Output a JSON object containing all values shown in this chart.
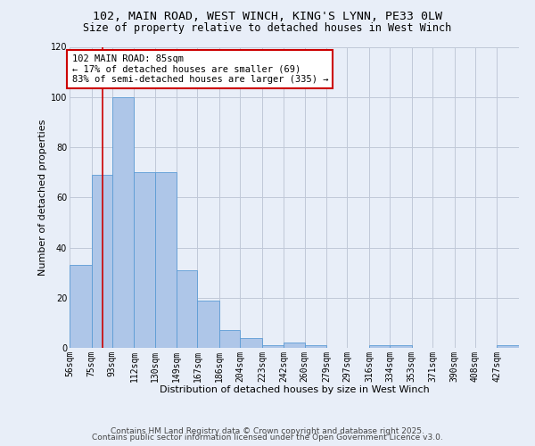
{
  "title_line1": "102, MAIN ROAD, WEST WINCH, KING'S LYNN, PE33 0LW",
  "title_line2": "Size of property relative to detached houses in West Winch",
  "xlabel": "Distribution of detached houses by size in West Winch",
  "ylabel": "Number of detached properties",
  "bin_labels": [
    "56sqm",
    "75sqm",
    "93sqm",
    "112sqm",
    "130sqm",
    "149sqm",
    "167sqm",
    "186sqm",
    "204sqm",
    "223sqm",
    "242sqm",
    "260sqm",
    "279sqm",
    "297sqm",
    "316sqm",
    "334sqm",
    "353sqm",
    "371sqm",
    "390sqm",
    "408sqm",
    "427sqm"
  ],
  "bin_edges": [
    56,
    75,
    93,
    112,
    130,
    149,
    167,
    186,
    204,
    223,
    242,
    260,
    279,
    297,
    316,
    334,
    353,
    371,
    390,
    408,
    427
  ],
  "bar_heights": [
    33,
    69,
    100,
    70,
    70,
    31,
    19,
    7,
    4,
    1,
    2,
    1,
    0,
    0,
    1,
    1,
    0,
    0,
    0,
    0,
    1
  ],
  "bar_color": "#aec6e8",
  "bar_edge_color": "#5b9bd5",
  "grid_color": "#c0c8d8",
  "background_color": "#e8eef8",
  "red_line_x": 85,
  "annotation_text": "102 MAIN ROAD: 85sqm\n← 17% of detached houses are smaller (69)\n83% of semi-detached houses are larger (335) →",
  "annotation_box_color": "#ffffff",
  "annotation_border_color": "#cc0000",
  "ylim": [
    0,
    120
  ],
  "yticks": [
    0,
    20,
    40,
    60,
    80,
    100,
    120
  ],
  "footer_line1": "Contains HM Land Registry data © Crown copyright and database right 2025.",
  "footer_line2": "Contains public sector information licensed under the Open Government Licence v3.0.",
  "title_fontsize": 9.5,
  "subtitle_fontsize": 8.5,
  "axis_label_fontsize": 8,
  "tick_fontsize": 7,
  "annotation_fontsize": 7.5,
  "footer_fontsize": 6.5
}
